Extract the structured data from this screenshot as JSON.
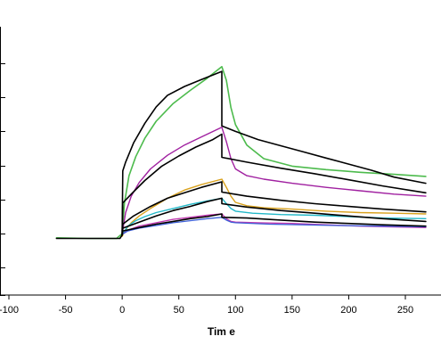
{
  "chart_data": {
    "type": "line",
    "title": "",
    "xlabel": "Tim e",
    "ylabel": "",
    "xlim": [
      -100,
      275
    ],
    "ylim": [
      -0.9,
      2.8
    ],
    "x_ticks": [
      -100,
      -50,
      0,
      50,
      100,
      150,
      200,
      250
    ],
    "x_tick_labels": [
      "-100",
      "-50",
      "0",
      "50",
      "100",
      "150",
      "200",
      "250"
    ],
    "y_ticks": [
      -0.9,
      -0.5,
      0,
      0.5,
      1,
      1.5,
      2,
      2.5
    ],
    "grid": false,
    "legend": "none",
    "colors": {
      "axis": "#000000",
      "fit": "#000000",
      "green": "#4dbb4d",
      "purple": "#a020a0",
      "orange": "#d9a21e",
      "cyan": "#22b8c8",
      "magenta": "#c03ab0",
      "blue": "#3c5fd8"
    },
    "series": [
      {
        "color": "green",
        "width": 1.6,
        "points": [
          [
            -58,
            -0.06
          ],
          [
            -30,
            -0.07
          ],
          [
            -5,
            -0.07
          ],
          [
            0,
            0.0
          ],
          [
            2,
            0.45
          ],
          [
            6,
            0.85
          ],
          [
            12,
            1.13
          ],
          [
            20,
            1.4
          ],
          [
            30,
            1.65
          ],
          [
            45,
            1.91
          ],
          [
            60,
            2.1
          ],
          [
            75,
            2.28
          ],
          [
            88,
            2.45
          ],
          [
            92,
            2.25
          ],
          [
            96,
            1.85
          ],
          [
            100,
            1.6
          ],
          [
            110,
            1.3
          ],
          [
            125,
            1.1
          ],
          [
            150,
            0.99
          ],
          [
            180,
            0.94
          ],
          [
            210,
            0.9
          ],
          [
            240,
            0.87
          ],
          [
            268,
            0.84
          ]
        ]
      },
      {
        "color": "purple",
        "width": 1.4,
        "points": [
          [
            0,
            0.0
          ],
          [
            3,
            0.31
          ],
          [
            8,
            0.55
          ],
          [
            15,
            0.75
          ],
          [
            25,
            0.95
          ],
          [
            40,
            1.15
          ],
          [
            55,
            1.3
          ],
          [
            70,
            1.42
          ],
          [
            88,
            1.56
          ],
          [
            92,
            1.35
          ],
          [
            96,
            1.1
          ],
          [
            100,
            0.95
          ],
          [
            110,
            0.85
          ],
          [
            125,
            0.8
          ],
          [
            150,
            0.74
          ],
          [
            180,
            0.68
          ],
          [
            210,
            0.63
          ],
          [
            240,
            0.58
          ],
          [
            268,
            0.55
          ]
        ]
      },
      {
        "color": "orange",
        "width": 1.4,
        "points": [
          [
            0,
            -0.04
          ],
          [
            3,
            0.06
          ],
          [
            8,
            0.16
          ],
          [
            15,
            0.26
          ],
          [
            25,
            0.37
          ],
          [
            40,
            0.52
          ],
          [
            55,
            0.64
          ],
          [
            70,
            0.72
          ],
          [
            88,
            0.8
          ],
          [
            92,
            0.68
          ],
          [
            96,
            0.55
          ],
          [
            100,
            0.46
          ],
          [
            110,
            0.41
          ],
          [
            125,
            0.38
          ],
          [
            150,
            0.36
          ],
          [
            180,
            0.33
          ],
          [
            210,
            0.31
          ],
          [
            240,
            0.3
          ],
          [
            268,
            0.29
          ]
        ]
      },
      {
        "color": "cyan",
        "width": 1.4,
        "points": [
          [
            0,
            -0.02
          ],
          [
            5,
            0.11
          ],
          [
            12,
            0.19
          ],
          [
            20,
            0.25
          ],
          [
            30,
            0.31
          ],
          [
            45,
            0.37
          ],
          [
            60,
            0.43
          ],
          [
            75,
            0.48
          ],
          [
            88,
            0.52
          ],
          [
            92,
            0.44
          ],
          [
            96,
            0.37
          ],
          [
            100,
            0.33
          ],
          [
            115,
            0.3
          ],
          [
            140,
            0.28
          ],
          [
            170,
            0.27
          ],
          [
            200,
            0.25
          ],
          [
            230,
            0.23
          ],
          [
            268,
            0.22
          ]
        ]
      },
      {
        "color": "magenta",
        "width": 1.4,
        "points": [
          [
            0,
            -0.01
          ],
          [
            5,
            0.05
          ],
          [
            15,
            0.11
          ],
          [
            30,
            0.16
          ],
          [
            45,
            0.21
          ],
          [
            60,
            0.24
          ],
          [
            75,
            0.27
          ],
          [
            88,
            0.29
          ],
          [
            92,
            0.22
          ],
          [
            96,
            0.18
          ],
          [
            100,
            0.17
          ],
          [
            120,
            0.16
          ],
          [
            150,
            0.15
          ],
          [
            180,
            0.13
          ],
          [
            210,
            0.11
          ],
          [
            240,
            0.1
          ],
          [
            268,
            0.09
          ]
        ]
      },
      {
        "color": "blue",
        "width": 1.3,
        "points": [
          [
            0,
            -0.01
          ],
          [
            5,
            0.04
          ],
          [
            15,
            0.08
          ],
          [
            30,
            0.12
          ],
          [
            45,
            0.16
          ],
          [
            60,
            0.19
          ],
          [
            75,
            0.22
          ],
          [
            88,
            0.24
          ],
          [
            92,
            0.2
          ],
          [
            96,
            0.17
          ],
          [
            100,
            0.16
          ],
          [
            130,
            0.14
          ],
          [
            160,
            0.13
          ],
          [
            190,
            0.12
          ],
          [
            230,
            0.11
          ],
          [
            268,
            0.1
          ]
        ]
      },
      {
        "color": "fit",
        "width": 1.6,
        "points": [
          [
            -58,
            -0.07
          ],
          [
            -30,
            -0.07
          ],
          [
            -2,
            -0.07
          ],
          [
            0,
            -0.02
          ],
          [
            0.5,
            0.92
          ],
          [
            3,
            1.05
          ],
          [
            10,
            1.33
          ],
          [
            20,
            1.62
          ],
          [
            30,
            1.86
          ],
          [
            40,
            2.03
          ],
          [
            55,
            2.16
          ],
          [
            70,
            2.26
          ],
          [
            88,
            2.38
          ],
          [
            88,
            1.58
          ],
          [
            100,
            1.5
          ],
          [
            120,
            1.38
          ],
          [
            140,
            1.29
          ],
          [
            160,
            1.2
          ],
          [
            180,
            1.11
          ],
          [
            200,
            1.02
          ],
          [
            220,
            0.93
          ],
          [
            240,
            0.83
          ],
          [
            268,
            0.74
          ]
        ]
      },
      {
        "color": "fit",
        "width": 1.6,
        "points": [
          [
            0,
            -0.02
          ],
          [
            0.5,
            0.45
          ],
          [
            8,
            0.58
          ],
          [
            20,
            0.78
          ],
          [
            35,
            0.99
          ],
          [
            50,
            1.14
          ],
          [
            65,
            1.27
          ],
          [
            80,
            1.38
          ],
          [
            88,
            1.46
          ],
          [
            88,
            1.12
          ],
          [
            110,
            1.05
          ],
          [
            140,
            0.96
          ],
          [
            170,
            0.88
          ],
          [
            200,
            0.79
          ],
          [
            230,
            0.7
          ],
          [
            268,
            0.6
          ]
        ]
      },
      {
        "color": "fit",
        "width": 1.6,
        "points": [
          [
            0,
            -0.02
          ],
          [
            0.5,
            0.14
          ],
          [
            10,
            0.26
          ],
          [
            25,
            0.4
          ],
          [
            40,
            0.52
          ],
          [
            55,
            0.6
          ],
          [
            70,
            0.68
          ],
          [
            88,
            0.76
          ],
          [
            88,
            0.61
          ],
          [
            110,
            0.55
          ],
          [
            140,
            0.49
          ],
          [
            170,
            0.44
          ],
          [
            200,
            0.4
          ],
          [
            230,
            0.36
          ],
          [
            268,
            0.32
          ]
        ]
      },
      {
        "color": "fit",
        "width": 1.6,
        "points": [
          [
            0,
            -0.02
          ],
          [
            0.5,
            0.08
          ],
          [
            15,
            0.17
          ],
          [
            30,
            0.26
          ],
          [
            45,
            0.34
          ],
          [
            60,
            0.4
          ],
          [
            75,
            0.47
          ],
          [
            88,
            0.52
          ],
          [
            88,
            0.44
          ],
          [
            110,
            0.39
          ],
          [
            140,
            0.34
          ],
          [
            170,
            0.3
          ],
          [
            200,
            0.26
          ],
          [
            230,
            0.22
          ],
          [
            268,
            0.18
          ]
        ]
      },
      {
        "color": "fit",
        "width": 1.6,
        "points": [
          [
            0,
            -0.02
          ],
          [
            0.5,
            0.04
          ],
          [
            15,
            0.09
          ],
          [
            30,
            0.14
          ],
          [
            45,
            0.18
          ],
          [
            60,
            0.22
          ],
          [
            75,
            0.25
          ],
          [
            88,
            0.29
          ],
          [
            88,
            0.24
          ],
          [
            110,
            0.23
          ],
          [
            140,
            0.2
          ],
          [
            170,
            0.17
          ],
          [
            200,
            0.15
          ],
          [
            230,
            0.13
          ],
          [
            268,
            0.11
          ]
        ]
      }
    ]
  }
}
